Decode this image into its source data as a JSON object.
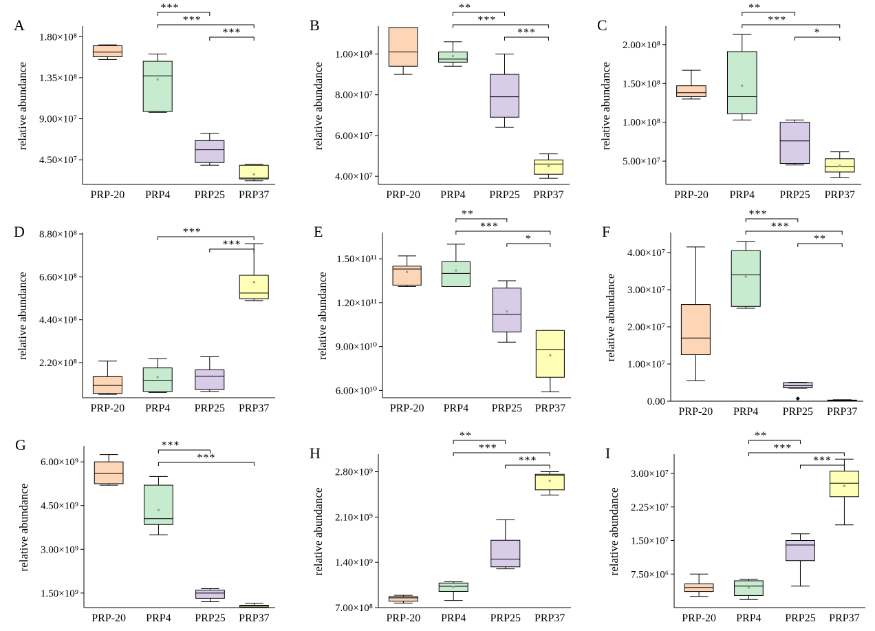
{
  "chart_data": [
    {
      "type": "box",
      "panel": "A",
      "ylabel": "relative abundance",
      "categories": [
        "PRP-20",
        "PRP4",
        "PRP25",
        "PRP37"
      ],
      "colors": [
        "#fdd5b7",
        "#c7ebce",
        "#d9cce8",
        "#fefeb6"
      ],
      "ylim": [
        18000000,
        190000000
      ],
      "yticks": [
        {
          "v": 45000000,
          "label": "4.50×10⁷"
        },
        {
          "v": 90000000,
          "label": "9.00×10⁷"
        },
        {
          "v": 135000000,
          "label": "1.35×10⁸"
        },
        {
          "v": 180000000,
          "label": "1.80×10⁸"
        }
      ],
      "boxes": [
        {
          "min": 155000000,
          "q1": 158000000,
          "median": 163000000,
          "q3": 170000000,
          "max": 171000000,
          "mean": null
        },
        {
          "min": 97000000,
          "q1": 98000000,
          "median": 137000000,
          "q3": 153000000,
          "max": 161000000,
          "mean": 133000000
        },
        {
          "min": 39000000,
          "q1": 42000000,
          "median": 56000000,
          "q3": 66000000,
          "max": 74000000,
          "mean": null
        },
        {
          "min": 22000000,
          "q1": 24000000,
          "median": 25000000,
          "q3": 39000000,
          "max": 40000000,
          "mean": 29000000
        }
      ],
      "sig": [
        {
          "from": 1,
          "to": 2,
          "label": "***"
        },
        {
          "from": 1,
          "to": 3,
          "label": "***"
        },
        {
          "from": 2,
          "to": 3,
          "label": "***"
        }
      ]
    },
    {
      "type": "box",
      "panel": "B",
      "ylabel": "relative abundance",
      "categories": [
        "PRP-20",
        "PRP4",
        "PRP25",
        "PRP37"
      ],
      "colors": [
        "#fdd5b7",
        "#c7ebce",
        "#d9cce8",
        "#fefeb6"
      ],
      "ylim": [
        36000000,
        113000000
      ],
      "yticks": [
        {
          "v": 40000000,
          "label": "4.00×10⁷"
        },
        {
          "v": 60000000,
          "label": "6.00×10⁷"
        },
        {
          "v": 80000000,
          "label": "8.00×10⁷"
        },
        {
          "v": 100000000,
          "label": "1.00×10⁸"
        }
      ],
      "boxes": [
        {
          "min": 90000000,
          "q1": 94000000,
          "median": 101000000,
          "q3": 113000000,
          "max": 113000000,
          "mean": null
        },
        {
          "min": 94000000,
          "q1": 96000000,
          "median": 97500000,
          "q3": 101000000,
          "max": 106000000,
          "mean": 99000000
        },
        {
          "min": 64000000,
          "q1": 69000000,
          "median": 79000000,
          "q3": 90000000,
          "max": 100000000,
          "mean": null
        },
        {
          "min": 39000000,
          "q1": 41000000,
          "median": 46000000,
          "q3": 48000000,
          "max": 51000000,
          "mean": 45000000
        }
      ],
      "sig": [
        {
          "from": 1,
          "to": 2,
          "label": "**"
        },
        {
          "from": 1,
          "to": 3,
          "label": "***"
        },
        {
          "from": 2,
          "to": 3,
          "label": "***"
        }
      ]
    },
    {
      "type": "box",
      "panel": "C",
      "ylabel": "relative abundance",
      "categories": [
        "PRP-20",
        "PRP4",
        "PRP25",
        "PRP37"
      ],
      "colors": [
        "#fdd5b7",
        "#c7ebce",
        "#d9cce8",
        "#fefeb6"
      ],
      "ylim": [
        20000000,
        222000000
      ],
      "yticks": [
        {
          "v": 50000000,
          "label": "5.00×10⁷"
        },
        {
          "v": 100000000,
          "label": "1.00×10⁸"
        },
        {
          "v": 150000000,
          "label": "1.50×10⁸"
        },
        {
          "v": 200000000,
          "label": "2.00×10⁸"
        }
      ],
      "boxes": [
        {
          "min": 130000000,
          "q1": 133000000,
          "median": 138000000,
          "q3": 147000000,
          "max": 167000000,
          "mean": null
        },
        {
          "min": 103000000,
          "q1": 111000000,
          "median": 133000000,
          "q3": 191000000,
          "max": 213000000,
          "mean": 147000000
        },
        {
          "min": 45000000,
          "q1": 47000000,
          "median": 76000000,
          "q3": 100000000,
          "max": 103000000,
          "mean": null
        },
        {
          "min": 29000000,
          "q1": 36000000,
          "median": 43000000,
          "q3": 53000000,
          "max": 62000000,
          "mean": 44000000
        }
      ],
      "sig": [
        {
          "from": 1,
          "to": 2,
          "label": "**"
        },
        {
          "from": 1,
          "to": 3,
          "label": "***"
        },
        {
          "from": 2,
          "to": 3,
          "label": "*"
        }
      ]
    },
    {
      "type": "box",
      "panel": "D",
      "ylabel": "relative abundance",
      "categories": [
        "PRP-20",
        "PRP4",
        "PRP25",
        "PRP37"
      ],
      "colors": [
        "#fdd5b7",
        "#c7ebce",
        "#d9cce8",
        "#fefeb6"
      ],
      "ylim": [
        40000000,
        880000000
      ],
      "yticks": [
        {
          "v": 220000000,
          "label": "2.20×10⁸"
        },
        {
          "v": 440000000,
          "label": "4.40×10⁸"
        },
        {
          "v": 660000000,
          "label": "6.60×10⁸"
        },
        {
          "v": 880000000,
          "label": "8.80×10⁸"
        }
      ],
      "boxes": [
        {
          "min": 57000000,
          "q1": 62000000,
          "median": 103000000,
          "q3": 148000000,
          "max": 228000000,
          "mean": null
        },
        {
          "min": 67000000,
          "q1": 72000000,
          "median": 130000000,
          "q3": 193000000,
          "max": 240000000,
          "mean": 145000000
        },
        {
          "min": 72000000,
          "q1": 82000000,
          "median": 150000000,
          "q3": 183000000,
          "max": 250000000,
          "mean": null
        },
        {
          "min": 538000000,
          "q1": 548000000,
          "median": 577000000,
          "q3": 668000000,
          "max": 830000000,
          "mean": 633000000
        }
      ],
      "sig": [
        {
          "from": 1,
          "to": 3,
          "label": "***"
        },
        {
          "from": 2,
          "to": 3,
          "label": "***"
        }
      ]
    },
    {
      "type": "box",
      "panel": "E",
      "ylabel": "relative abundance",
      "categories": [
        "PRP-20",
        "PRP4",
        "PRP25",
        "PRP37"
      ],
      "colors": [
        "#fdd5b7",
        "#c7ebce",
        "#d9cce8",
        "#fefeb6"
      ],
      "ylim": [
        55000000000,
        167000000000
      ],
      "yticks": [
        {
          "v": 60000000000,
          "label": "6.00×10¹⁰"
        },
        {
          "v": 90000000000,
          "label": "9.00×10¹⁰"
        },
        {
          "v": 120000000000,
          "label": "1.20×10¹¹"
        },
        {
          "v": 150000000000,
          "label": "1.50×10¹¹"
        }
      ],
      "boxes": [
        {
          "min": 131000000000,
          "q1": 132000000000,
          "median": 143000000000,
          "q3": 145000000000,
          "max": 152000000000,
          "mean": 141000000000
        },
        {
          "min": 131000000000,
          "q1": 131000000000,
          "median": 140000000000,
          "q3": 148000000000,
          "max": 160000000000,
          "mean": 142000000000
        },
        {
          "min": 93000000000,
          "q1": 100000000000,
          "median": 112000000000,
          "q3": 130000000000,
          "max": 135000000000,
          "mean": 114000000000
        },
        {
          "min": 59000000000,
          "q1": 69000000000,
          "median": 88000000000,
          "q3": 101000000000,
          "max": 101000000000,
          "mean": 84000000000
        }
      ],
      "sig": [
        {
          "from": 1,
          "to": 2,
          "label": "**"
        },
        {
          "from": 1,
          "to": 3,
          "label": "***"
        },
        {
          "from": 2,
          "to": 3,
          "label": "*"
        }
      ]
    },
    {
      "type": "box",
      "panel": "F",
      "ylabel": "relative abundance",
      "categories": [
        "PRP-20",
        "PRP4",
        "PRP25",
        "PRP37"
      ],
      "colors": [
        "#fdd5b7",
        "#c7ebce",
        "#d9cce8",
        "#fefeb6"
      ],
      "ylim": [
        0,
        45000000
      ],
      "yticks": [
        {
          "v": 0,
          "label": "0.00"
        },
        {
          "v": 10000000,
          "label": "1.00×10⁷"
        },
        {
          "v": 20000000,
          "label": "2.00×10⁷"
        },
        {
          "v": 30000000,
          "label": "3.00×10⁷"
        },
        {
          "v": 40000000,
          "label": "4.00×10⁷"
        }
      ],
      "boxes": [
        {
          "min": 5500000,
          "q1": 12500000,
          "median": 17000000,
          "q3": 26000000,
          "max": 41500000,
          "mean": null
        },
        {
          "min": 25000000,
          "q1": 25500000,
          "median": 34000000,
          "q3": 40500000,
          "max": 43000000,
          "mean": 33500000
        },
        {
          "min": 3500000,
          "q1": 3600000,
          "median": 4200000,
          "q3": 5000000,
          "max": 5100000,
          "mean": null,
          "outliers": [
            700000
          ]
        },
        {
          "min": 100000,
          "q1": 150000,
          "median": 200000,
          "q3": 300000,
          "max": 400000,
          "mean": null
        }
      ],
      "sig": [
        {
          "from": 1,
          "to": 2,
          "label": "***"
        },
        {
          "from": 1,
          "to": 3,
          "label": "***"
        },
        {
          "from": 2,
          "to": 3,
          "label": "**"
        }
      ]
    },
    {
      "type": "box",
      "panel": "G",
      "ylabel": "relative abundance",
      "categories": [
        "PRP-20",
        "PRP4",
        "PRP25",
        "PRP37"
      ],
      "colors": [
        "#fdd5b7",
        "#c7ebce",
        "#d9cce8",
        "#fefeb6"
      ],
      "ylim": [
        1000000000,
        6500000000
      ],
      "yticks": [
        {
          "v": 1500000000,
          "label": "1.50×10⁹"
        },
        {
          "v": 3000000000,
          "label": "3.00×10⁹"
        },
        {
          "v": 4500000000,
          "label": "4.50×10⁹"
        },
        {
          "v": 6000000000,
          "label": "6.00×10⁹"
        }
      ],
      "boxes": [
        {
          "min": 5200000000,
          "q1": 5250000000,
          "median": 5600000000,
          "q3": 6000000000,
          "max": 6250000000,
          "mean": null
        },
        {
          "min": 3500000000,
          "q1": 3850000000,
          "median": 4050000000,
          "q3": 5200000000,
          "max": 5500000000,
          "mean": 4350000000
        },
        {
          "min": 1200000000,
          "q1": 1320000000,
          "median": 1500000000,
          "q3": 1600000000,
          "max": 1650000000,
          "mean": null
        },
        {
          "min": 1000000000,
          "q1": 1020000000,
          "median": 1060000000,
          "q3": 1080000000,
          "max": 1150000000,
          "mean": null
        }
      ],
      "sig": [
        {
          "from": 1,
          "to": 2,
          "label": "***"
        },
        {
          "from": 1,
          "to": 3,
          "label": "***"
        }
      ]
    },
    {
      "type": "box",
      "panel": "H",
      "ylabel": "relative abundance",
      "categories": [
        "PRP-20",
        "PRP4",
        "PRP25",
        "PRP37"
      ],
      "colors": [
        "#fdd5b7",
        "#c7ebce",
        "#d9cce8",
        "#fefeb6"
      ],
      "ylim": [
        700000000,
        3050000000
      ],
      "yticks": [
        {
          "v": 700000000,
          "label": "7.00×10⁸"
        },
        {
          "v": 1400000000,
          "label": "1.40×10⁹"
        },
        {
          "v": 2100000000,
          "label": "2.10×10⁹"
        },
        {
          "v": 2800000000,
          "label": "2.80×10⁹"
        }
      ],
      "boxes": [
        {
          "min": 770000000,
          "q1": 800000000,
          "median": 850000000,
          "q3": 870000000,
          "max": 890000000,
          "mean": null
        },
        {
          "min": 810000000,
          "q1": 950000000,
          "median": 1030000000,
          "q3": 1080000000,
          "max": 1100000000,
          "mean": 1020000000
        },
        {
          "min": 1300000000,
          "q1": 1330000000,
          "median": 1450000000,
          "q3": 1740000000,
          "max": 2060000000,
          "mean": null
        },
        {
          "min": 2440000000,
          "q1": 2520000000,
          "median": 2740000000,
          "q3": 2760000000,
          "max": 2800000000,
          "mean": 2660000000
        }
      ],
      "sig": [
        {
          "from": 1,
          "to": 2,
          "label": "**"
        },
        {
          "from": 1,
          "to": 3,
          "label": "***"
        },
        {
          "from": 2,
          "to": 3,
          "label": "***"
        }
      ]
    },
    {
      "type": "box",
      "panel": "I",
      "ylabel": "relative abundance",
      "categories": [
        "PRP-20",
        "PRP4",
        "PRP25",
        "PRP37"
      ],
      "colors": [
        "#fdd5b7",
        "#c7ebce",
        "#d9cce8",
        "#fefeb6"
      ],
      "ylim": [
        0,
        34000000
      ],
      "yticks": [
        {
          "v": 7500000,
          "label": "7.50×10⁶"
        },
        {
          "v": 15000000,
          "label": "1.50×10⁷"
        },
        {
          "v": 22500000,
          "label": "2.25×10⁷"
        },
        {
          "v": 30000000,
          "label": "3.00×10⁷"
        }
      ],
      "boxes": [
        {
          "min": 2500000,
          "q1": 3600000,
          "median": 4500000,
          "q3": 5300000,
          "max": 7500000,
          "mean": null
        },
        {
          "min": 1800000,
          "q1": 2700000,
          "median": 4800000,
          "q3": 6000000,
          "max": 6300000,
          "mean": 4500000
        },
        {
          "min": 4800000,
          "q1": 10500000,
          "median": 14000000,
          "q3": 15000000,
          "max": 16500000,
          "mean": null
        },
        {
          "min": 18500000,
          "q1": 24800000,
          "median": 27800000,
          "q3": 30500000,
          "max": 33200000,
          "mean": 27200000
        }
      ],
      "sig": [
        {
          "from": 1,
          "to": 2,
          "label": "**"
        },
        {
          "from": 1,
          "to": 3,
          "label": "***"
        },
        {
          "from": 2,
          "to": 3,
          "label": "***"
        }
      ]
    }
  ]
}
